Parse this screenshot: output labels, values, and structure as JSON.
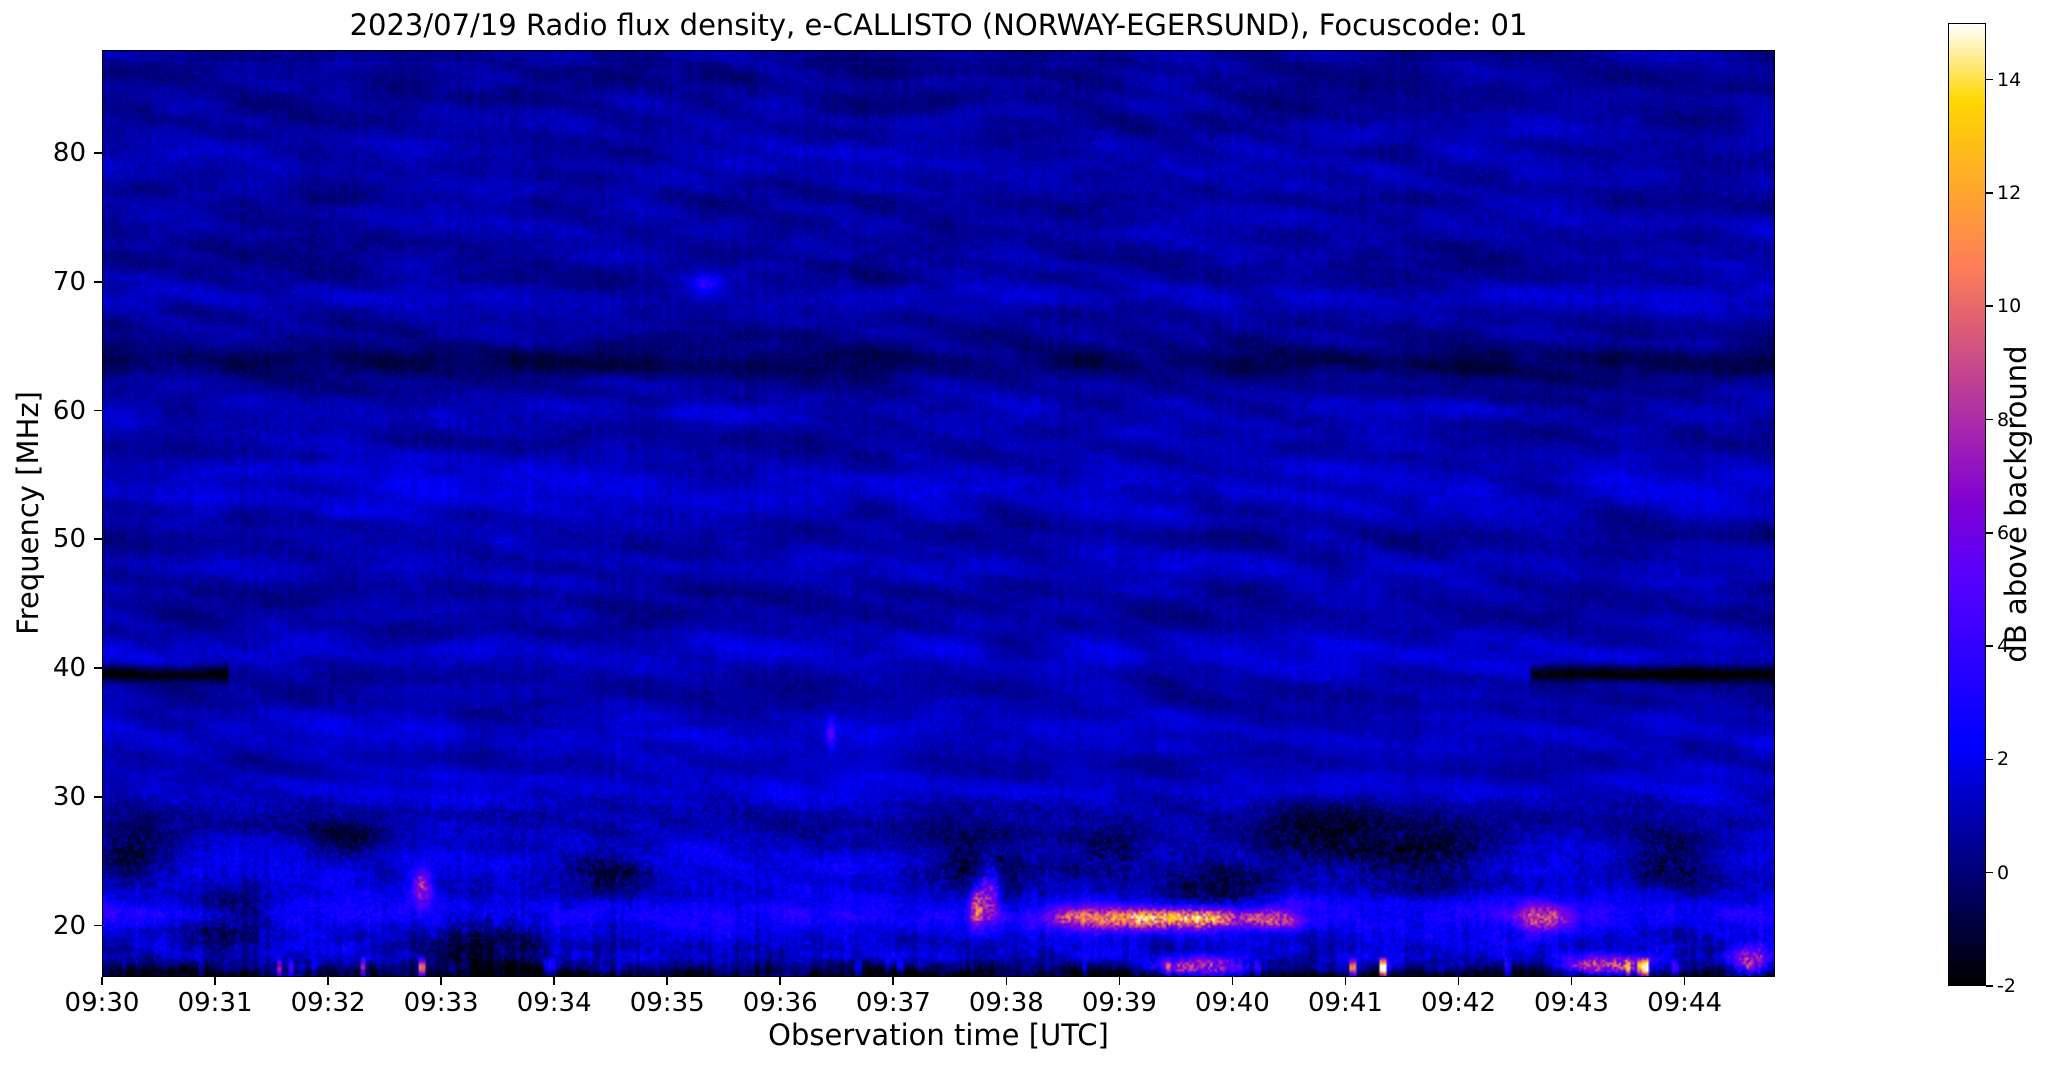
{
  "chart_data": {
    "type": "heatmap",
    "title": "2023/07/19  Radio flux density, e-CALLISTO (NORWAY-EGERSUND), Focuscode: 01",
    "xlabel": "Observation time [UTC]",
    "ylabel": "Frequency [MHz]",
    "colorbar_label": "dB above background",
    "x_range": [
      "09:30:00",
      "09:44:48"
    ],
    "x_ticks": [
      "09:30",
      "09:31",
      "09:32",
      "09:33",
      "09:34",
      "09:35",
      "09:36",
      "09:37",
      "09:38",
      "09:39",
      "09:40",
      "09:41",
      "09:42",
      "09:43",
      "09:44"
    ],
    "y_range": [
      16,
      88
    ],
    "y_ticks": [
      20,
      30,
      40,
      50,
      60,
      70,
      80
    ],
    "colorbar_range": [
      -2,
      15
    ],
    "colorbar_ticks": [
      -2,
      0,
      2,
      4,
      6,
      8,
      10,
      12,
      14
    ],
    "colormap": "gnuplot2",
    "grid": false,
    "legend": "none",
    "description": "Solar radio dynamic spectrum from e-CALLISTO station NORWAY-EGERSUND. Mostly quiet dark-blue background near 0-2 dB with wavy horizontal interference banding; brighter broadband emission and RFI bursts (magenta/orange, 5-11 dB) below ~28 MHz; dark absorption patches between ~19-28 MHz; nearly black strip below ~17.5 MHz with bright dashes; black receiver-gap line at ~39.5 MHz at the start and end of the interval.",
    "features": {
      "background_db_range": [
        0,
        2
      ],
      "horizontal_bands_mhz": [
        {
          "freq": 20.8,
          "width": 1.0,
          "db": 2.0
        },
        {
          "freq": 24.8,
          "width": 1.4,
          "db": 1.3
        },
        {
          "freq": 30.5,
          "width": 1.1,
          "db": 0.9
        },
        {
          "freq": 34.8,
          "width": 1.4,
          "db": 0.8
        },
        {
          "freq": 41.0,
          "width": 1.2,
          "db": 0.9
        },
        {
          "freq": 47.8,
          "width": 1.1,
          "db": 0.6
        },
        {
          "freq": 54.0,
          "width": 1.8,
          "db": 0.9
        },
        {
          "freq": 59.8,
          "width": 0.9,
          "db": 0.5
        },
        {
          "freq": 63.8,
          "width": 0.9,
          "db": -1.0
        },
        {
          "freq": 68.8,
          "width": 0.7,
          "db": 0.7
        },
        {
          "freq": 74.5,
          "width": 1.1,
          "db": 0.4
        },
        {
          "freq": 80.0,
          "width": 1.6,
          "db": 0.4
        }
      ],
      "rfi_gap_lines": [
        {
          "freq": 39.5,
          "t_start": 0.0,
          "t_end": 0.075,
          "db": -2
        },
        {
          "freq": 39.5,
          "t_start": 0.855,
          "t_end": 1.0,
          "db": -2
        }
      ],
      "absorption_patches": [
        {
          "t": 0.015,
          "freq": 25.5,
          "rt": 0.018,
          "rf": 1.6
        },
        {
          "t": 0.075,
          "freq": 20.5,
          "rt": 0.02,
          "rf": 1.8
        },
        {
          "t": 0.145,
          "freq": 26.5,
          "rt": 0.015,
          "rf": 1.2
        },
        {
          "t": 0.23,
          "freq": 19.5,
          "rt": 0.025,
          "rf": 2.0
        },
        {
          "t": 0.3,
          "freq": 24.0,
          "rt": 0.02,
          "rf": 1.5
        },
        {
          "t": 0.52,
          "freq": 24.5,
          "rt": 0.03,
          "rf": 2.0
        },
        {
          "t": 0.6,
          "freq": 25.5,
          "rt": 0.02,
          "rf": 1.5
        },
        {
          "t": 0.665,
          "freq": 23.0,
          "rt": 0.025,
          "rf": 2.2
        },
        {
          "t": 0.73,
          "freq": 27.0,
          "rt": 0.03,
          "rf": 1.8
        },
        {
          "t": 0.8,
          "freq": 25.5,
          "rt": 0.03,
          "rf": 2.0
        },
        {
          "t": 0.935,
          "freq": 25.0,
          "rt": 0.02,
          "rf": 1.8
        }
      ],
      "bright_bursts": [
        {
          "t": 0.19,
          "freq": 23.0,
          "rt": 0.004,
          "rf": 0.9,
          "db": 7.5
        },
        {
          "t": 0.435,
          "freq": 35.0,
          "rt": 0.002,
          "rf": 0.8,
          "db": 4.0
        },
        {
          "t": 0.36,
          "freq": 70.0,
          "rt": 0.006,
          "rf": 0.5,
          "db": 3.0
        },
        {
          "t": 0.522,
          "freq": 21.5,
          "rt": 0.003,
          "rf": 1.2,
          "db": 8.0
        },
        {
          "t": 0.53,
          "freq": 22.5,
          "rt": 0.004,
          "rf": 1.5,
          "db": 7.0
        },
        {
          "t": 0.58,
          "freq": 20.6,
          "rt": 0.012,
          "rf": 0.6,
          "db": 5.0
        },
        {
          "t": 0.62,
          "freq": 20.5,
          "rt": 0.02,
          "rf": 0.7,
          "db": 6.0
        },
        {
          "t": 0.64,
          "freq": 20.6,
          "rt": 0.04,
          "rf": 0.5,
          "db": 5.0
        },
        {
          "t": 0.66,
          "freq": 20.5,
          "rt": 0.015,
          "rf": 0.6,
          "db": 7.0
        },
        {
          "t": 0.7,
          "freq": 20.5,
          "rt": 0.01,
          "rf": 0.6,
          "db": 6.0
        },
        {
          "t": 0.655,
          "freq": 16.8,
          "rt": 0.02,
          "rf": 0.5,
          "db": 9.0
        },
        {
          "t": 0.86,
          "freq": 20.5,
          "rt": 0.012,
          "rf": 0.8,
          "db": 7.0
        },
        {
          "t": 0.9,
          "freq": 16.9,
          "rt": 0.018,
          "rf": 0.5,
          "db": 10.0
        },
        {
          "t": 0.985,
          "freq": 17.2,
          "rt": 0.008,
          "rf": 0.8,
          "db": 9.0
        }
      ],
      "low_freq_enhancement": {
        "below_mhz": 28,
        "max_extra_db": 3
      },
      "bottom_dark_strip": {
        "below_mhz": 17.5
      }
    }
  }
}
